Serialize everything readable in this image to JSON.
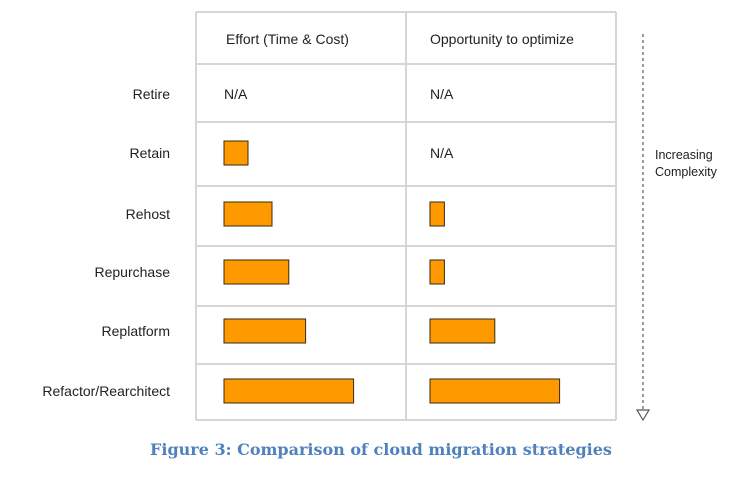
{
  "chart_data": {
    "type": "table",
    "columns": [
      "Effort (Time & Cost)",
      "Opportunity to optimize"
    ],
    "rows": [
      {
        "label": "Retire",
        "effort": null,
        "effort_text": "N/A",
        "opportunity": null,
        "opportunity_text": "N/A"
      },
      {
        "label": "Retain",
        "effort": 1,
        "effort_text": "",
        "opportunity": null,
        "opportunity_text": "N/A"
      },
      {
        "label": "Rehost",
        "effort": 2,
        "effort_text": "",
        "opportunity": 0.6,
        "opportunity_text": ""
      },
      {
        "label": "Repurchase",
        "effort": 2.7,
        "effort_text": "",
        "opportunity": 0.6,
        "opportunity_text": ""
      },
      {
        "label": "Replatform",
        "effort": 3.4,
        "effort_text": "",
        "opportunity": 2.7,
        "opportunity_text": ""
      },
      {
        "label": "Refactor/Rearchitect",
        "effort": 5.4,
        "effort_text": "",
        "opportunity": 5.4,
        "opportunity_text": ""
      }
    ],
    "bar_color": "#ff9900",
    "side_label_line1": "Increasing",
    "side_label_line2": "Complexity",
    "caption": "Figure 3: Comparison of cloud migration strategies"
  }
}
